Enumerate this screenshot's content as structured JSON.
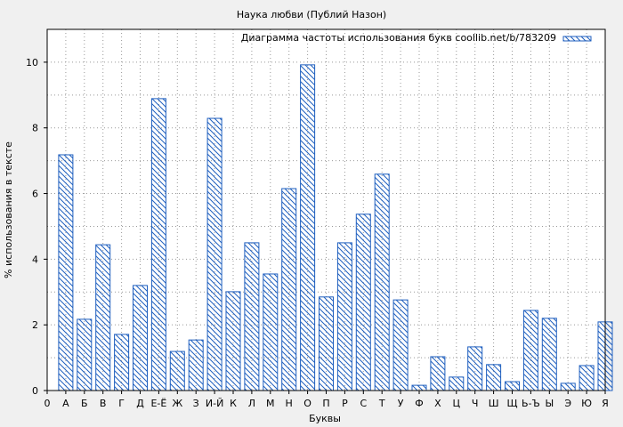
{
  "chart_data": {
    "type": "bar",
    "title": "Наука любви (Публий Назон)",
    "xlabel": "Буквы",
    "ylabel": "% использования в тексте",
    "legend": {
      "label": "Диаграмма частоты использования букв coollib.net/b/783209",
      "placement": "top-right"
    },
    "x_origin_label": "0",
    "categories": [
      "А",
      "Б",
      "В",
      "Г",
      "Д",
      "Е-Ё",
      "Ж",
      "З",
      "И-Й",
      "К",
      "Л",
      "М",
      "Н",
      "О",
      "П",
      "Р",
      "С",
      "Т",
      "У",
      "Ф",
      "Х",
      "Ц",
      "Ч",
      "Ш",
      "Щ",
      "Ь-Ъ",
      "Ы",
      "Э",
      "Ю",
      "Я"
    ],
    "values": [
      7.18,
      2.17,
      4.44,
      1.71,
      3.2,
      8.89,
      1.19,
      1.54,
      8.29,
      3.01,
      4.5,
      3.55,
      6.15,
      9.92,
      2.85,
      4.5,
      5.37,
      6.59,
      2.76,
      0.16,
      1.03,
      0.41,
      1.33,
      0.79,
      0.27,
      2.44,
      2.2,
      0.22,
      0.76,
      2.09
    ],
    "ylim": [
      0,
      11
    ],
    "yticks": [
      0,
      2,
      4,
      6,
      8,
      10
    ],
    "grid": true,
    "bar_color": "#1f5fbf"
  }
}
